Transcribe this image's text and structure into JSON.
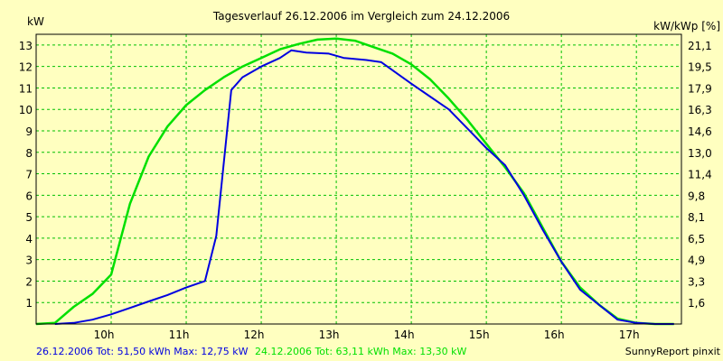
{
  "chart_data": {
    "type": "line",
    "title": "Tagesverlauf 26.12.2006 im Vergleich zum 24.12.2006",
    "ylabel": "kW",
    "y2label": "kW/kWp [%]",
    "xlim": [
      9.0,
      17.6
    ],
    "ylim": [
      0,
      13.5
    ],
    "grid": true,
    "x_ticks": [
      {
        "v": 10,
        "label": "10h"
      },
      {
        "v": 11,
        "label": "11h"
      },
      {
        "v": 12,
        "label": "12h"
      },
      {
        "v": 13,
        "label": "13h"
      },
      {
        "v": 14,
        "label": "14h"
      },
      {
        "v": 15,
        "label": "15h"
      },
      {
        "v": 16,
        "label": "16h"
      },
      {
        "v": 17,
        "label": "17h"
      }
    ],
    "y_ticks": [
      {
        "v": 1,
        "label": "1"
      },
      {
        "v": 2,
        "label": "2"
      },
      {
        "v": 3,
        "label": "3"
      },
      {
        "v": 4,
        "label": "4"
      },
      {
        "v": 5,
        "label": "5"
      },
      {
        "v": 6,
        "label": "6"
      },
      {
        "v": 7,
        "label": "7"
      },
      {
        "v": 8,
        "label": "8"
      },
      {
        "v": 9,
        "label": "9"
      },
      {
        "v": 10,
        "label": "10"
      },
      {
        "v": 11,
        "label": "11"
      },
      {
        "v": 12,
        "label": "12"
      },
      {
        "v": 13,
        "label": "13"
      }
    ],
    "y2_ticks": [
      {
        "v": 1,
        "label": "1,6"
      },
      {
        "v": 2,
        "label": "3,3"
      },
      {
        "v": 3,
        "label": "4,9"
      },
      {
        "v": 4,
        "label": "6,5"
      },
      {
        "v": 5,
        "label": "8,1"
      },
      {
        "v": 6,
        "label": "9,8"
      },
      {
        "v": 7,
        "label": "11,4"
      },
      {
        "v": 8,
        "label": "13,0"
      },
      {
        "v": 9,
        "label": "14,6"
      },
      {
        "v": 10,
        "label": "16,3"
      },
      {
        "v": 11,
        "label": "17,9"
      },
      {
        "v": 12,
        "label": "19,5"
      },
      {
        "v": 13,
        "label": "21,1"
      }
    ],
    "series": [
      {
        "color": "#00e000",
        "x": [
          9.0,
          9.25,
          9.5,
          9.75,
          10.0,
          10.25,
          10.5,
          10.75,
          11.0,
          11.25,
          11.5,
          11.75,
          12.0,
          12.25,
          12.5,
          12.75,
          13.0,
          13.25,
          13.5,
          13.75,
          14.0,
          14.25,
          14.5,
          14.75,
          15.0,
          15.25,
          15.5,
          15.75,
          16.0,
          16.25,
          16.5,
          16.75,
          17.0,
          17.25,
          17.5
        ],
        "y": [
          0.0,
          0.05,
          0.8,
          1.4,
          2.3,
          5.6,
          7.8,
          9.2,
          10.2,
          10.9,
          11.5,
          12.0,
          12.4,
          12.8,
          13.05,
          13.25,
          13.3,
          13.2,
          12.9,
          12.6,
          12.1,
          11.4,
          10.5,
          9.5,
          8.4,
          7.3,
          6.1,
          4.5,
          2.9,
          1.7,
          0.9,
          0.25,
          0.05,
          0.0,
          0.0
        ]
      },
      {
        "color": "#0000e0",
        "x": [
          9.25,
          9.5,
          9.75,
          10.0,
          10.25,
          10.5,
          10.75,
          11.0,
          11.25,
          11.4,
          11.6,
          11.75,
          12.0,
          12.25,
          12.4,
          12.6,
          12.9,
          13.1,
          13.4,
          13.6,
          13.8,
          14.0,
          14.25,
          14.5,
          14.75,
          15.0,
          15.25,
          15.5,
          15.75,
          16.0,
          16.25,
          16.5,
          16.75,
          17.0,
          17.25,
          17.5
        ],
        "y": [
          0.0,
          0.05,
          0.2,
          0.45,
          0.75,
          1.05,
          1.35,
          1.7,
          2.0,
          4.1,
          10.9,
          11.5,
          12.0,
          12.4,
          12.75,
          12.65,
          12.6,
          12.4,
          12.3,
          12.2,
          11.7,
          11.2,
          10.6,
          10.0,
          9.1,
          8.2,
          7.4,
          6.0,
          4.4,
          2.9,
          1.6,
          0.9,
          0.2,
          0.05,
          0.0,
          0.0
        ]
      }
    ]
  },
  "footer": {
    "series1_text": "26.12.2006 Tot: 51,50 kWh Max: 12,75 kW",
    "series1_color": "#0000e0",
    "series2_text": "24.12.2006 Tot: 63,11 kWh Max: 13,30 kW",
    "series2_color": "#00e000",
    "credit": "SunnyReport pinxit"
  }
}
